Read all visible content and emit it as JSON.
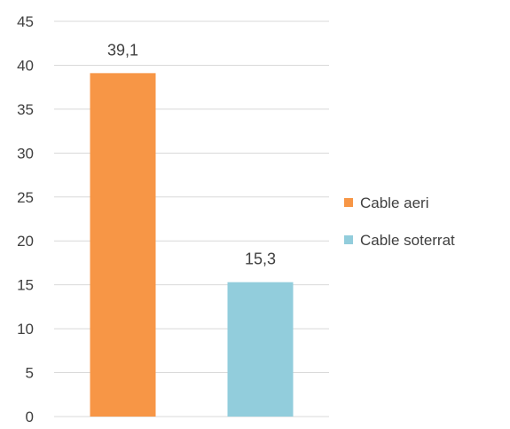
{
  "chart_data": {
    "type": "bar",
    "categories": [
      "Cable aeri",
      "Cable soterrat"
    ],
    "series": [
      {
        "name": "Cable aeri",
        "values": [
          39.1,
          null
        ]
      },
      {
        "name": "Cable soterrat",
        "values": [
          null,
          15.3
        ]
      }
    ],
    "data_labels": [
      "39,1",
      "15,3"
    ],
    "colors": [
      "#F79646",
      "#92CDDC"
    ],
    "ylim": [
      0,
      45
    ],
    "yticks": [
      0,
      5,
      10,
      15,
      20,
      25,
      30,
      35,
      40,
      45
    ],
    "grid": true,
    "legend_position": "right",
    "title": "",
    "xlabel": "",
    "ylabel": ""
  }
}
